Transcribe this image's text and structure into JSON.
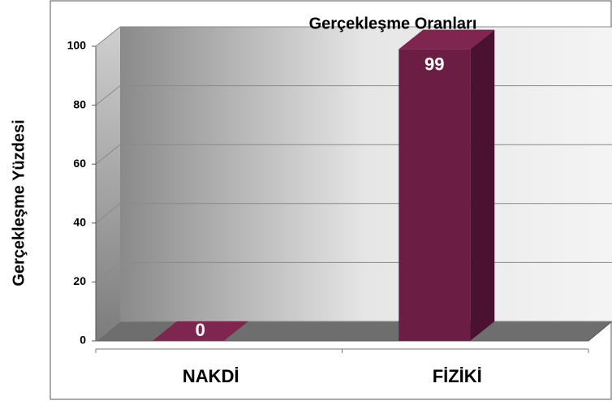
{
  "chart_data": {
    "type": "bar",
    "title": "Gerçekleşme Oranları",
    "ylabel": "Gerçekleşme Yüzdesi",
    "categories": [
      "NAKDİ",
      "FİZİKİ"
    ],
    "values": [
      0,
      99
    ],
    "color": "#6b1d43",
    "ylim": [
      0,
      100
    ],
    "yticks": [
      0,
      20,
      40,
      60,
      80,
      100
    ],
    "grid": true
  }
}
